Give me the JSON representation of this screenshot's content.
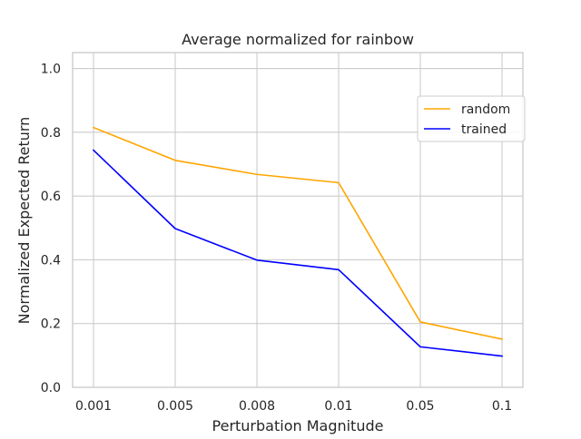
{
  "chart_data": {
    "type": "line",
    "title": "Average normalized for rainbow",
    "xlabel": "Perturbation Magnitude",
    "ylabel": "Normalized Expected Return",
    "categories": [
      "0.001",
      "0.005",
      "0.008",
      "0.01",
      "0.05",
      "0.1"
    ],
    "ylim": [
      0.0,
      1.05
    ],
    "yticks": [
      "0.0",
      "0.2",
      "0.4",
      "0.6",
      "0.8",
      "1.0"
    ],
    "grid": true,
    "legend_position": "upper right",
    "series": [
      {
        "name": "random",
        "color": "#ffa500",
        "values": [
          0.815,
          0.712,
          0.668,
          0.642,
          0.205,
          0.151
        ]
      },
      {
        "name": "trained",
        "color": "#0000ff",
        "values": [
          0.744,
          0.498,
          0.399,
          0.369,
          0.127,
          0.098
        ]
      }
    ]
  }
}
